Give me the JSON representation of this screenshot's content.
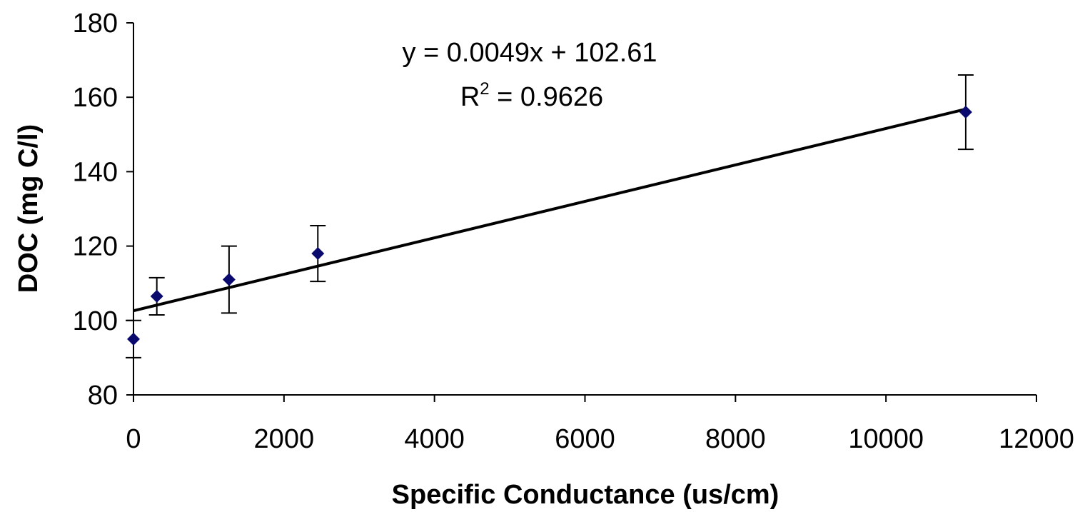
{
  "chart_data": {
    "type": "scatter",
    "xlabel": "Specific Conductance (us/cm)",
    "ylabel": "DOC (mg C/l)",
    "xlim": [
      0,
      12000
    ],
    "ylim": [
      80,
      180
    ],
    "x_ticks": [
      0,
      2000,
      4000,
      6000,
      8000,
      10000,
      12000
    ],
    "y_ticks": [
      80,
      100,
      120,
      140,
      160,
      180
    ],
    "grid": false,
    "points": [
      {
        "x": 0,
        "y": 95,
        "err": 5
      },
      {
        "x": 310,
        "y": 106.5,
        "err": 5
      },
      {
        "x": 1270,
        "y": 111,
        "err": 9
      },
      {
        "x": 2450,
        "y": 118,
        "err": 7.5
      },
      {
        "x": 11060,
        "y": 156,
        "err": 10
      }
    ],
    "trendline": {
      "slope": 0.0049,
      "intercept": 102.61
    },
    "annotations": {
      "equation": "y = 0.0049x + 102.61",
      "r2_prefix": "R",
      "r2_sup": "2",
      "r2_value": " = 0.9626"
    },
    "colors": {
      "points": "#0a0a6e",
      "line": "#000000",
      "axes": "#000000"
    }
  }
}
